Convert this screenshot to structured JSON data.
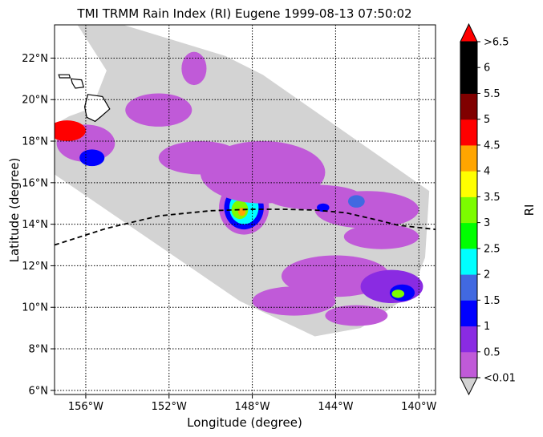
{
  "chart_data": {
    "type": "heatmap",
    "title": "TMI TRMM Rain Index (RI) Eugene 1999-08-13 07:50:02",
    "xlabel": "Longitude (degree)",
    "ylabel": "Latitude (degree)",
    "xlim": [
      -157.5,
      -139.2
    ],
    "ylim": [
      5.8,
      23.6
    ],
    "xticks": [
      {
        "value": -156,
        "label": "156°W"
      },
      {
        "value": -152,
        "label": "152°W"
      },
      {
        "value": -148,
        "label": "148°W"
      },
      {
        "value": -144,
        "label": "144°W"
      },
      {
        "value": -140,
        "label": "140°W"
      }
    ],
    "yticks": [
      {
        "value": 6,
        "label": "6°N"
      },
      {
        "value": 8,
        "label": "8°N"
      },
      {
        "value": 10,
        "label": "10°N"
      },
      {
        "value": 12,
        "label": "12°N"
      },
      {
        "value": 14,
        "label": "14°N"
      },
      {
        "value": 16,
        "label": "16°N"
      },
      {
        "value": 18,
        "label": "18°N"
      },
      {
        "value": 20,
        "label": "20°N"
      },
      {
        "value": 22,
        "label": "22°N"
      }
    ],
    "grid": true,
    "grid_style": "dotted",
    "swath_outline": [
      [
        -156.4,
        23.6
      ],
      [
        -154.2,
        23.6
      ],
      [
        -149.3,
        22.1
      ],
      [
        -147.5,
        21.2
      ],
      [
        -139.5,
        15.6
      ],
      [
        -139.7,
        12.4
      ],
      [
        -140.4,
        10.6
      ],
      [
        -142.8,
        9.0
      ],
      [
        -145.0,
        8.6
      ],
      [
        -148.6,
        10.3
      ],
      [
        -157.5,
        16.4
      ],
      [
        -157.5,
        18.8
      ],
      [
        -156.8,
        19.2
      ],
      [
        -155.7,
        19.6
      ],
      [
        -155.0,
        21.4
      ]
    ],
    "track": {
      "style": "dashed",
      "points": [
        [
          -157.5,
          13.0
        ],
        [
          -155.0,
          13.8
        ],
        [
          -152.5,
          14.4
        ],
        [
          -150.0,
          14.65
        ],
        [
          -148.0,
          14.72
        ],
        [
          -146.5,
          14.72
        ],
        [
          -145.0,
          14.68
        ],
        [
          -143.5,
          14.55
        ],
        [
          -142.0,
          14.2
        ],
        [
          -141.0,
          13.95
        ],
        [
          -139.2,
          13.75
        ]
      ]
    },
    "rain_regions": [
      {
        "lon": -148.4,
        "lat": 14.8,
        "rx": 1.2,
        "ry": 1.3,
        "ri": 0.3
      },
      {
        "lon": -148.4,
        "lat": 14.8,
        "rx": 0.95,
        "ry": 1.05,
        "ri": 1.2
      },
      {
        "lon": -148.4,
        "lat": 14.8,
        "rx": 0.7,
        "ry": 0.8,
        "ri": 2.2
      },
      {
        "lon": -148.6,
        "lat": 14.7,
        "rx": 0.4,
        "ry": 0.45,
        "ri": 3.2
      },
      {
        "lon": -148.5,
        "lat": 14.6,
        "rx": 0.18,
        "ry": 0.2,
        "ri": 4.2
      },
      {
        "lon": -147.5,
        "lat": 16.5,
        "rx": 3.0,
        "ry": 1.5,
        "ri": 0.3
      },
      {
        "lon": -150.5,
        "lat": 17.2,
        "rx": 2.0,
        "ry": 0.8,
        "ri": 0.3
      },
      {
        "lon": -145.0,
        "lat": 15.3,
        "rx": 2.3,
        "ry": 0.6,
        "ri": 0.3
      },
      {
        "lon": -142.5,
        "lat": 14.7,
        "rx": 2.5,
        "ry": 0.9,
        "ri": 0.3
      },
      {
        "lon": -143.0,
        "lat": 15.1,
        "rx": 0.4,
        "ry": 0.3,
        "ri": 1.7
      },
      {
        "lon": -144.6,
        "lat": 14.8,
        "rx": 0.3,
        "ry": 0.2,
        "ri": 1.2
      },
      {
        "lon": -141.8,
        "lat": 13.4,
        "rx": 1.8,
        "ry": 0.6,
        "ri": 0.3
      },
      {
        "lon": -156.0,
        "lat": 17.9,
        "rx": 1.4,
        "ry": 0.9,
        "ri": 0.3
      },
      {
        "lon": -156.9,
        "lat": 18.5,
        "rx": 0.9,
        "ry": 0.5,
        "ri": 4.7
      },
      {
        "lon": -155.7,
        "lat": 17.2,
        "rx": 0.6,
        "ry": 0.4,
        "ri": 1.2
      },
      {
        "lon": -152.5,
        "lat": 19.5,
        "rx": 1.6,
        "ry": 0.8,
        "ri": 0.3
      },
      {
        "lon": -150.8,
        "lat": 21.5,
        "rx": 0.6,
        "ry": 0.8,
        "ri": 0.3
      },
      {
        "lon": -144.0,
        "lat": 11.5,
        "rx": 2.6,
        "ry": 1.0,
        "ri": 0.3
      },
      {
        "lon": -146.0,
        "lat": 10.3,
        "rx": 2.0,
        "ry": 0.7,
        "ri": 0.3
      },
      {
        "lon": -143.0,
        "lat": 9.6,
        "rx": 1.5,
        "ry": 0.5,
        "ri": 0.3
      },
      {
        "lon": -141.3,
        "lat": 11.0,
        "rx": 1.5,
        "ry": 0.8,
        "ri": 0.7
      },
      {
        "lon": -140.8,
        "lat": 10.7,
        "rx": 0.6,
        "ry": 0.4,
        "ri": 1.2
      },
      {
        "lon": -141.0,
        "lat": 10.65,
        "rx": 0.3,
        "ry": 0.2,
        "ri": 3.2
      }
    ],
    "land": [
      {
        "name": "island-big",
        "outline": [
          [
            -155.9,
            20.25
          ],
          [
            -155.2,
            20.15
          ],
          [
            -154.85,
            19.55
          ],
          [
            -155.25,
            19.2
          ],
          [
            -155.55,
            18.95
          ],
          [
            -155.95,
            19.15
          ],
          [
            -156.05,
            19.65
          ]
        ]
      },
      {
        "name": "island-maui",
        "outline": [
          [
            -156.7,
            21.0
          ],
          [
            -156.2,
            20.95
          ],
          [
            -156.1,
            20.6
          ],
          [
            -156.5,
            20.55
          ],
          [
            -156.65,
            20.8
          ]
        ]
      },
      {
        "name": "island-molokai",
        "outline": [
          [
            -157.3,
            21.2
          ],
          [
            -156.8,
            21.2
          ],
          [
            -156.75,
            21.05
          ],
          [
            -157.25,
            21.05
          ]
        ]
      }
    ],
    "colorbar": {
      "label": "RI",
      "levels": [
        0.01,
        0.5,
        1,
        1.5,
        2,
        2.5,
        3,
        3.5,
        4,
        4.5,
        5,
        5.5,
        6,
        6.5
      ],
      "tick_labels": [
        "<0.01",
        "0.5",
        "1",
        "1.5",
        "2",
        "2.5",
        "3",
        "3.5",
        "4",
        "4.5",
        "5",
        "5.5",
        "6",
        ">6.5"
      ],
      "colors": [
        "#c05ad8",
        "#8a2be2",
        "#0000ff",
        "#4169e1",
        "#00ffff",
        "#00ff00",
        "#7cfc00",
        "#ffff00",
        "#ffa500",
        "#ff0000",
        "#800000",
        "#000000",
        "#000000"
      ],
      "under_color": "#d3d3d3",
      "over_color": "#ff0000"
    },
    "swath_color": "#d3d3d3"
  }
}
